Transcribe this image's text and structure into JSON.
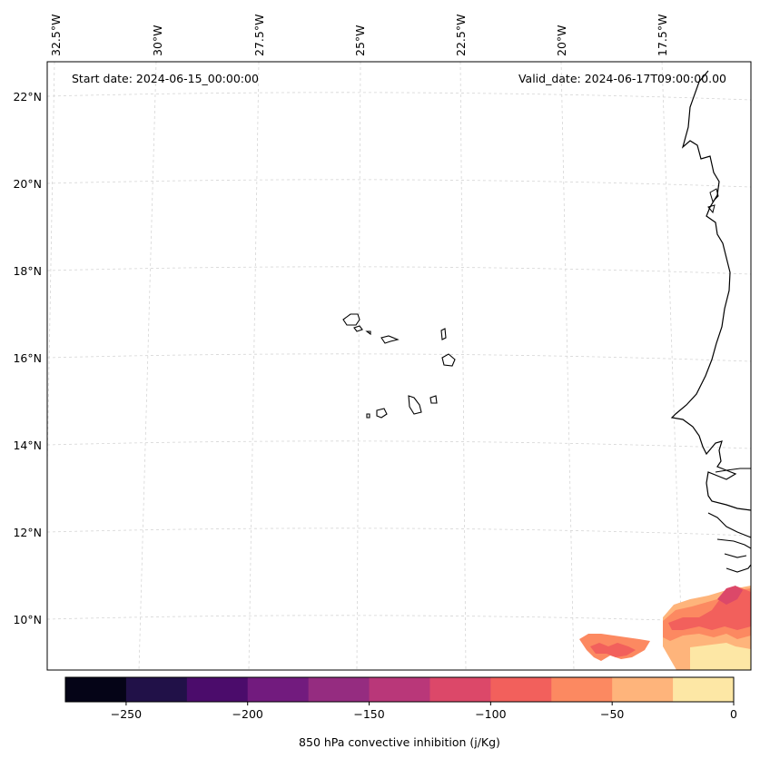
{
  "map": {
    "start_date": "Start date: 2024-06-15_00:00:00",
    "valid_date": "Valid_date: 2024-06-17T09:00:00.00",
    "lon_ticks": [
      "32.5°W",
      "30°W",
      "27.5°W",
      "25°W",
      "22.5°W",
      "20°W",
      "17.5°W"
    ],
    "lat_ticks": [
      "22°N",
      "20°N",
      "18°N",
      "16°N",
      "14°N",
      "12°N",
      "10°N"
    ],
    "gridlines": true,
    "coastline_color": "#000000"
  },
  "colorbar": {
    "label": "850 hPa convective inhibition (j/Kg)",
    "tick_labels": [
      "−250",
      "−200",
      "−150",
      "−100",
      "−50",
      "0"
    ],
    "min": -275,
    "max": 0,
    "step": 25,
    "colors": [
      "#050417",
      "#211148",
      "#4b0c6b",
      "#721b7e",
      "#952c80",
      "#b93779",
      "#dc4869",
      "#f2605c",
      "#fc8961",
      "#feb47b",
      "#fde7a5"
    ]
  }
}
